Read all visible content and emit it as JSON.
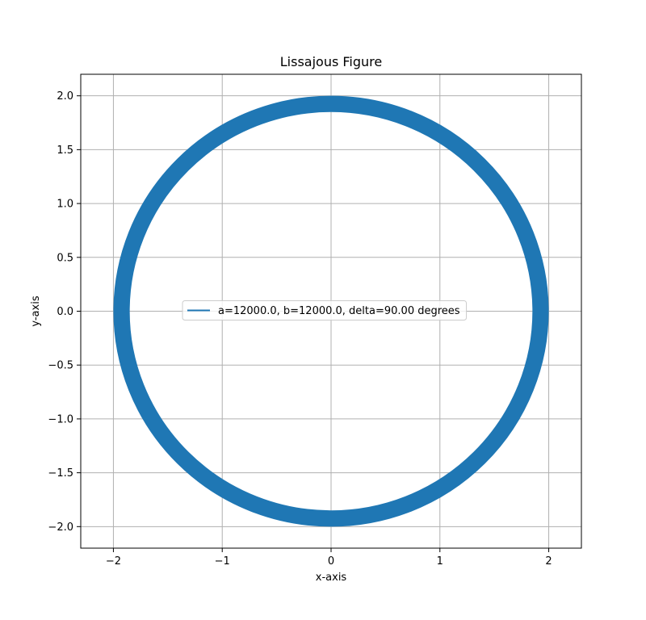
{
  "chart_data": {
    "type": "line",
    "title": "Lissajous Figure",
    "xlabel": "x-axis",
    "ylabel": "y-axis",
    "xlim": [
      -2.3,
      2.3
    ],
    "ylim": [
      -2.2,
      2.2
    ],
    "xticks": [
      -2,
      -1,
      0,
      1,
      2
    ],
    "xtick_labels": [
      "−2",
      "−1",
      "0",
      "1",
      "2"
    ],
    "yticks": [
      -2.0,
      -1.5,
      -1.0,
      -0.5,
      0.0,
      0.5,
      1.0,
      1.5,
      2.0
    ],
    "ytick_labels": [
      "−2.0",
      "−1.5",
      "−1.0",
      "−0.5",
      "0.0",
      "0.5",
      "1.0",
      "1.5",
      "2.0"
    ],
    "grid": true,
    "legend_position": "center",
    "series": [
      {
        "name": "a=12000.0, b=12000.0, delta=90.00 degrees",
        "color": "#1f77b4",
        "shape": "ring",
        "outer_radius": 2.0,
        "inner_radius": 1.85,
        "center": [
          0,
          0
        ]
      }
    ]
  }
}
